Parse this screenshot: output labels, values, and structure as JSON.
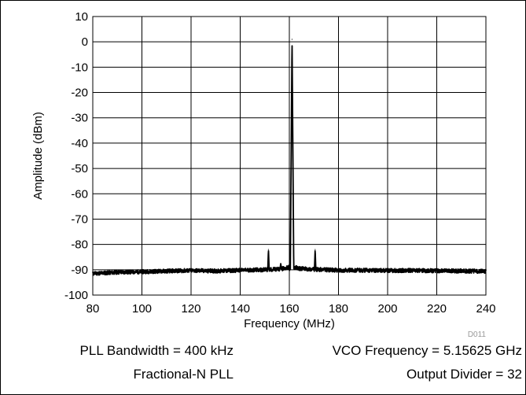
{
  "chart_data": {
    "type": "line",
    "xlabel": "Frequency (MHz)",
    "ylabel": "Amplitude (dBm)",
    "xlim": [
      80,
      240
    ],
    "ylim": [
      -100,
      10
    ],
    "x_ticks": [
      80,
      100,
      120,
      140,
      160,
      180,
      200,
      220,
      240
    ],
    "y_ticks": [
      10,
      0,
      -10,
      -20,
      -30,
      -40,
      -50,
      -60,
      -70,
      -80,
      -90,
      -100
    ],
    "grid": true,
    "figure_id": "D011",
    "series": [
      {
        "color": "#000000",
        "noise_floor_dbm": -90.5,
        "peaks": [
          {
            "x": 151.5,
            "y": -82
          },
          {
            "x": 156.5,
            "y": -87.5
          },
          {
            "x": 161.1,
            "y": 1
          },
          {
            "x": 165.5,
            "y": -89
          },
          {
            "x": 170.5,
            "y": -82
          }
        ],
        "x": [
          80,
          90,
          100,
          110,
          120,
          130,
          140,
          150,
          155,
          158,
          160,
          161.1,
          162,
          164,
          168,
          175,
          180,
          190,
          200,
          210,
          220,
          230,
          240
        ],
        "y": [
          -91.5,
          -91,
          -90.8,
          -90.5,
          -90.3,
          -90.5,
          -90.2,
          -90,
          -89.8,
          -89.5,
          -89,
          1,
          -89,
          -89.5,
          -89.8,
          -90,
          -90.2,
          -90.2,
          -90.3,
          -90.3,
          -90.4,
          -90.5,
          -90.6
        ]
      }
    ]
  },
  "notes": {
    "bandwidth": "PLL Bandwidth = 400 kHz",
    "vco": "VCO Frequency = 5.15625 GHz",
    "mode": "Fractional-N PLL",
    "divider": "Output Divider = 32"
  }
}
